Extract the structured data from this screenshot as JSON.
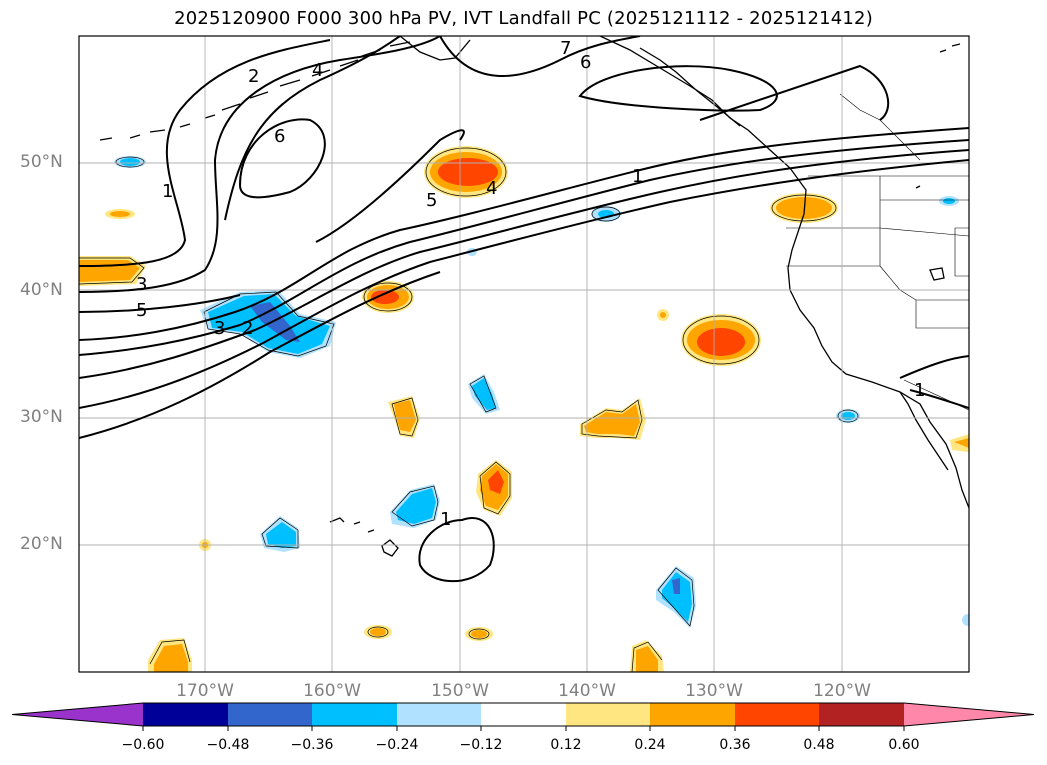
{
  "title": "2025120900 F000 300 hPa PV, IVT Landfall PC (2025121112 - 2025121412)",
  "axes": {
    "lat_labels": [
      "50°N",
      "40°N",
      "30°N",
      "20°N"
    ],
    "lon_labels": [
      "170°W",
      "160°W",
      "150°W",
      "140°W",
      "130°W",
      "120°W"
    ]
  },
  "contour_labels": [
    "2",
    "4",
    "6",
    "1",
    "7",
    "6",
    "1",
    "5",
    "4",
    "3",
    "5",
    "3",
    "2",
    "1",
    "1"
  ],
  "colorbar": {
    "ticks": [
      "−0.60",
      "−0.48",
      "−0.36",
      "−0.24",
      "−0.12",
      "0.12",
      "0.24",
      "0.36",
      "0.48",
      "0.60"
    ],
    "colors": [
      "#9933cc",
      "#000099",
      "#3366cc",
      "#00bfff",
      "#b0e2ff",
      "#ffffff",
      "#ffe680",
      "#ffa500",
      "#ff4500",
      "#b22222",
      "#ff88aa"
    ]
  }
}
